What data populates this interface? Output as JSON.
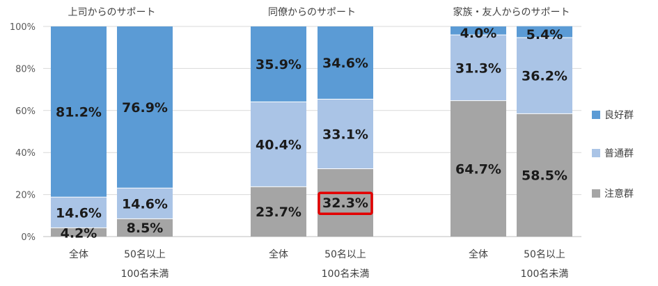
{
  "chart_data": {
    "type": "bar",
    "stacked": true,
    "percent": true,
    "ylim": [
      0,
      100
    ],
    "yticks": [
      "0%",
      "20%",
      "40%",
      "60%",
      "80%",
      "100%"
    ],
    "grid": true,
    "legend_position": "right",
    "series": [
      {
        "name": "注意群",
        "color": "#a5a5a5"
      },
      {
        "name": "普通群",
        "color": "#aac4e6"
      },
      {
        "name": "良好群",
        "color": "#5b9bd5"
      }
    ],
    "groups": [
      {
        "title": "上司からのサポート",
        "bars": [
          {
            "category": [
              "全体"
            ],
            "values": [
              4.2,
              14.6,
              81.2
            ],
            "labels": [
              "4.2%",
              "14.6%",
              "81.2%"
            ]
          },
          {
            "category": [
              "50名以上",
              "100名未満"
            ],
            "values": [
              8.5,
              14.6,
              76.9
            ],
            "labels": [
              "8.5%",
              "14.6%",
              "76.9%"
            ]
          }
        ]
      },
      {
        "title": "同僚からのサポート",
        "bars": [
          {
            "category": [
              "全体"
            ],
            "values": [
              23.7,
              40.4,
              35.9
            ],
            "labels": [
              "23.7%",
              "40.4%",
              "35.9%"
            ]
          },
          {
            "category": [
              "50名以上",
              "100名未満"
            ],
            "values": [
              32.3,
              33.1,
              34.6
            ],
            "labels": [
              "32.3%",
              "33.1%",
              "34.6%"
            ],
            "highlight_series": 0
          }
        ]
      },
      {
        "title": "家族・友人からのサポート",
        "bars": [
          {
            "category": [
              "全体"
            ],
            "values": [
              64.7,
              31.3,
              4.0
            ],
            "labels": [
              "64.7%",
              "31.3%",
              "4.0%"
            ]
          },
          {
            "category": [
              "50名以上",
              "100名未満"
            ],
            "values": [
              58.5,
              36.2,
              5.4
            ],
            "labels": [
              "58.5%",
              "36.2%",
              "5.4%"
            ]
          }
        ]
      }
    ],
    "highlight_color": "#e30000"
  }
}
